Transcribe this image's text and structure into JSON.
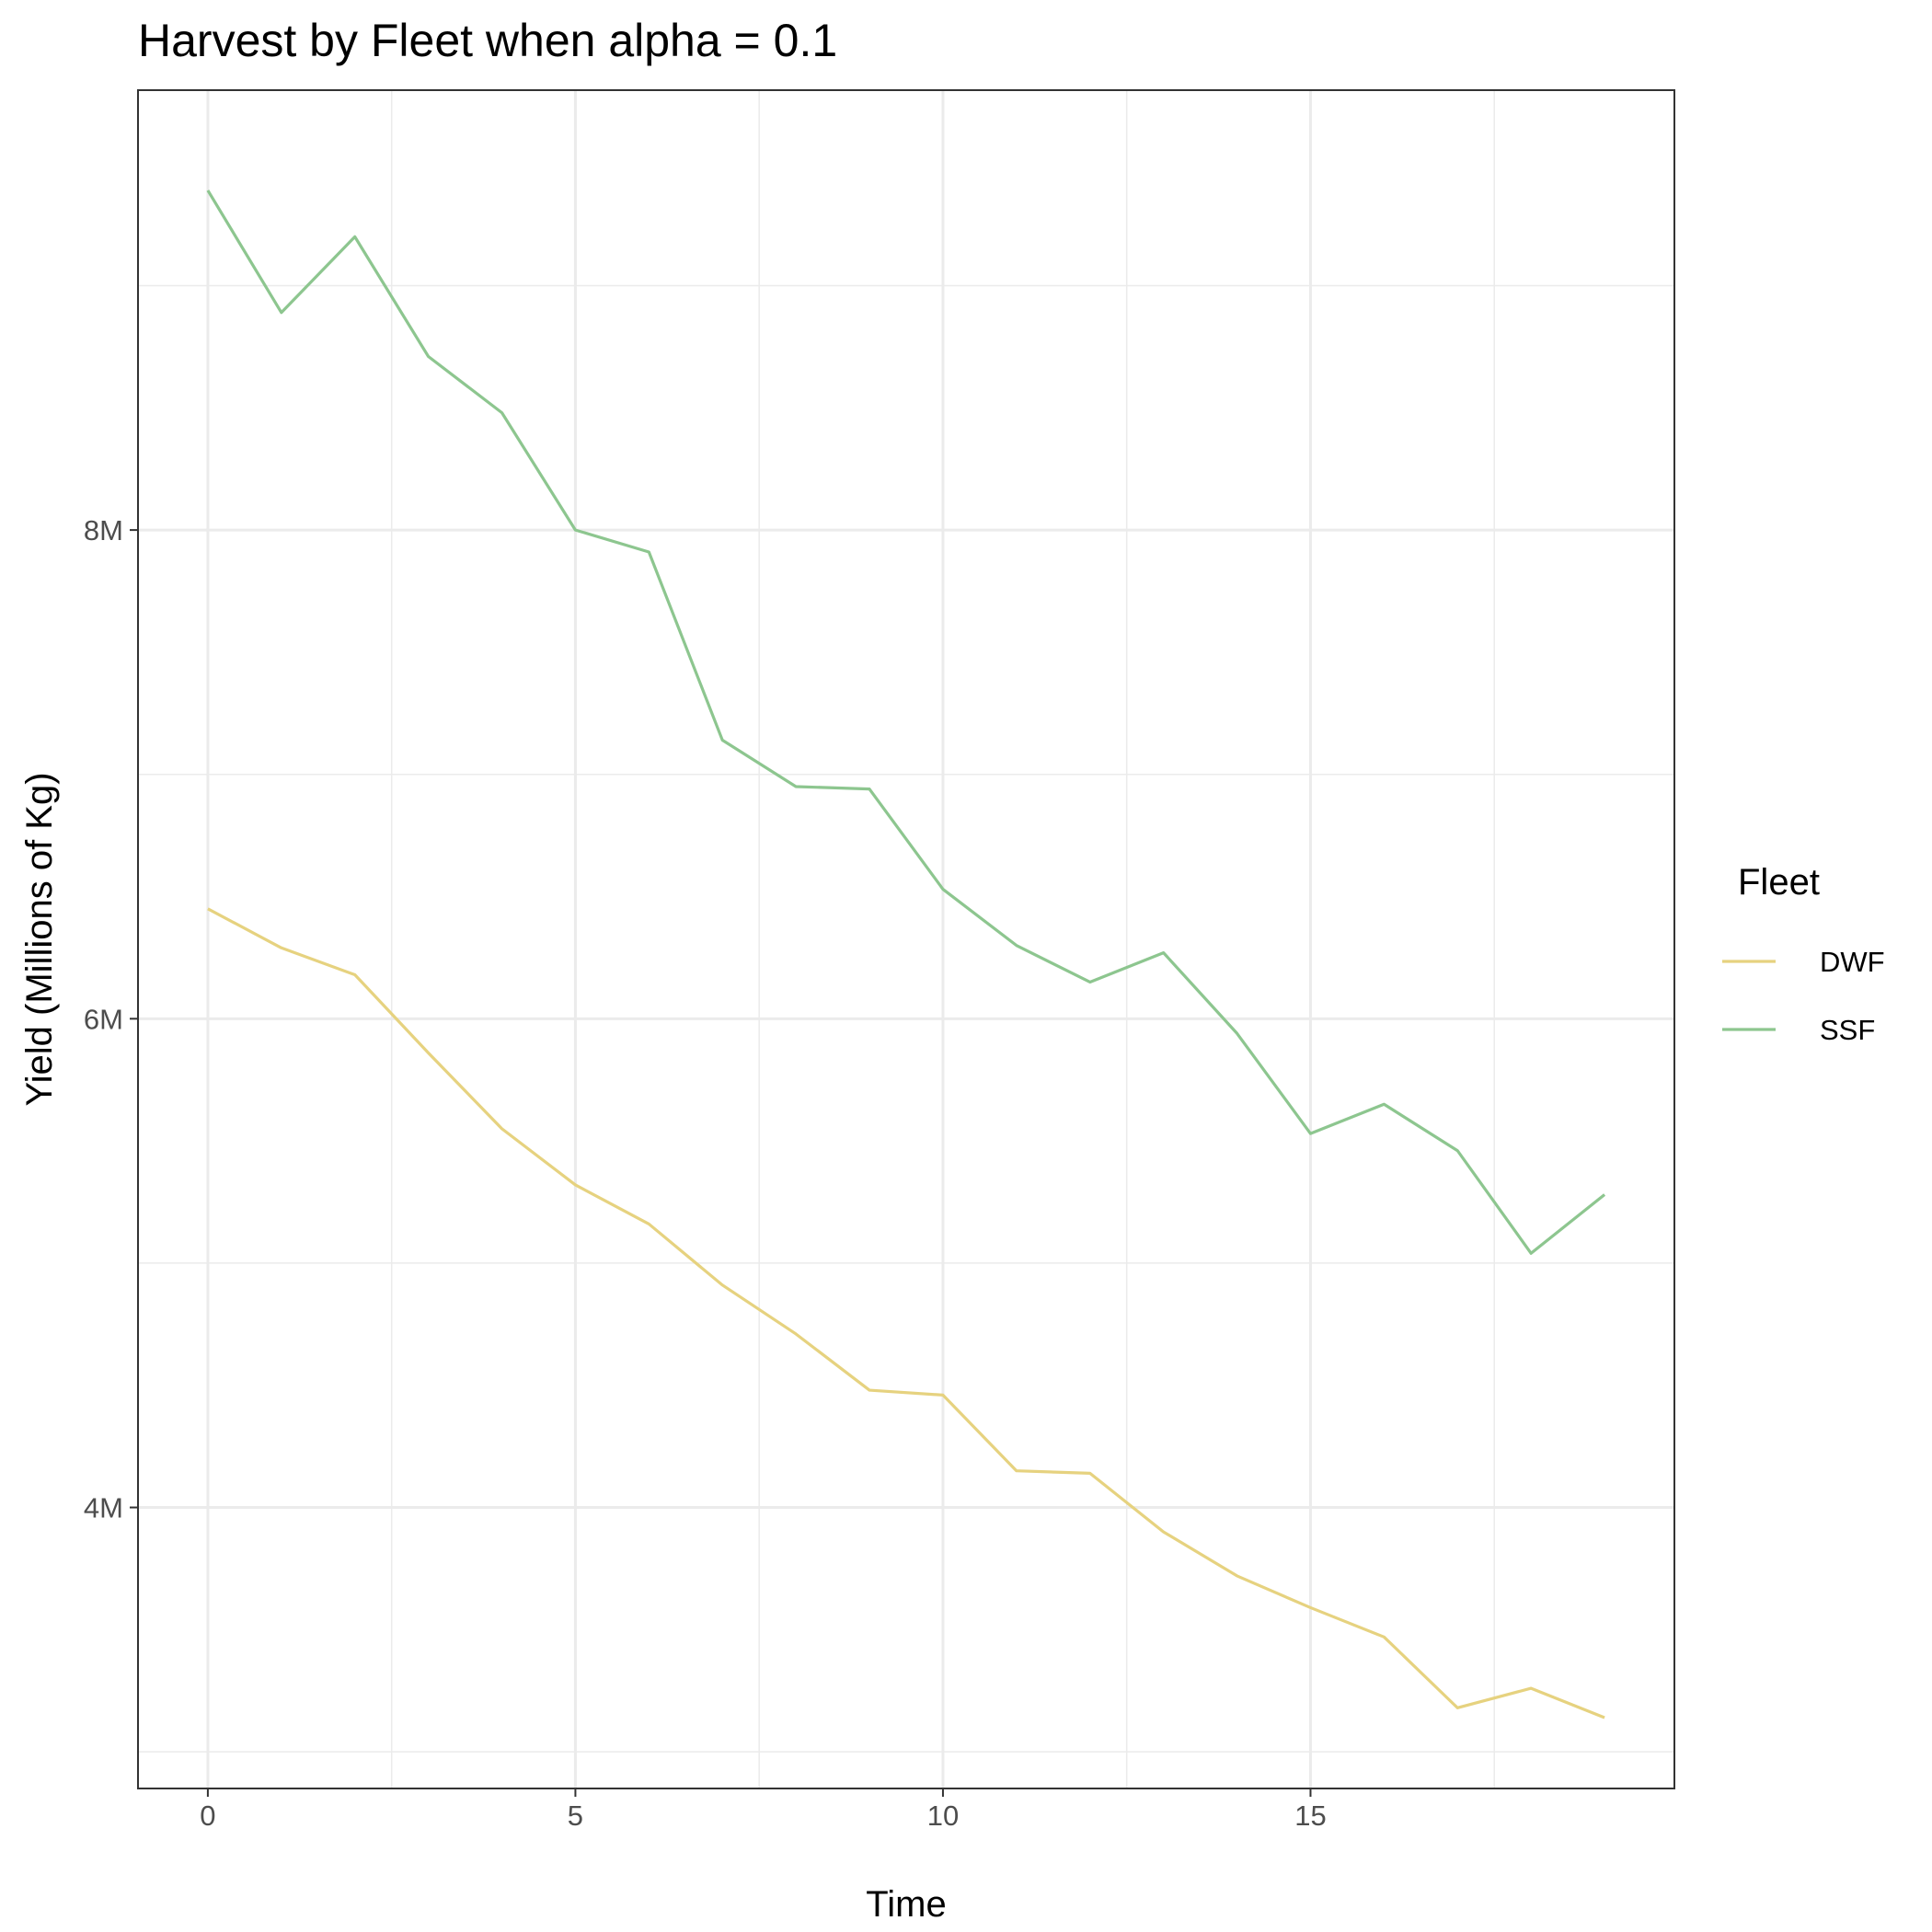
{
  "chart_data": {
    "type": "line",
    "title": "Harvest by Fleet when alpha = 0.1",
    "xlabel": "Time",
    "ylabel": "Yield (Millions of Kg)",
    "xlim": [
      -0.95,
      19.95
    ],
    "ylim": [
      2.85,
      9.8
    ],
    "xticks": [
      0,
      5,
      10,
      15
    ],
    "xtick_labels": [
      "0",
      "5",
      "10",
      "15"
    ],
    "x_minor_ticks": [
      2.5,
      7.5,
      12.5,
      17.5
    ],
    "yticks": [
      4,
      6,
      8
    ],
    "ytick_labels": [
      "4M",
      "6M",
      "8M"
    ],
    "y_minor_ticks": [
      3,
      5,
      7,
      9
    ],
    "grid": true,
    "legend": {
      "title": "Fleet",
      "position": "right"
    },
    "x": [
      0,
      1,
      2,
      3,
      4,
      5,
      6,
      7,
      8,
      9,
      10,
      11,
      12,
      13,
      14,
      15,
      16,
      17,
      18,
      19
    ],
    "series": [
      {
        "name": "DWF",
        "color": "#E6D27F",
        "values": [
          6.45,
          6.29,
          6.18,
          5.86,
          5.55,
          5.32,
          5.16,
          4.91,
          4.71,
          4.48,
          4.46,
          4.15,
          4.14,
          3.9,
          3.72,
          3.59,
          3.47,
          3.18,
          3.26,
          3.14
        ]
      },
      {
        "name": "SSF",
        "color": "#8DC68F",
        "values": [
          9.39,
          8.89,
          9.2,
          8.71,
          8.48,
          8.0,
          7.91,
          7.14,
          6.95,
          6.94,
          6.53,
          6.3,
          6.15,
          6.27,
          5.94,
          5.53,
          5.65,
          5.46,
          5.04,
          5.28
        ]
      }
    ]
  }
}
